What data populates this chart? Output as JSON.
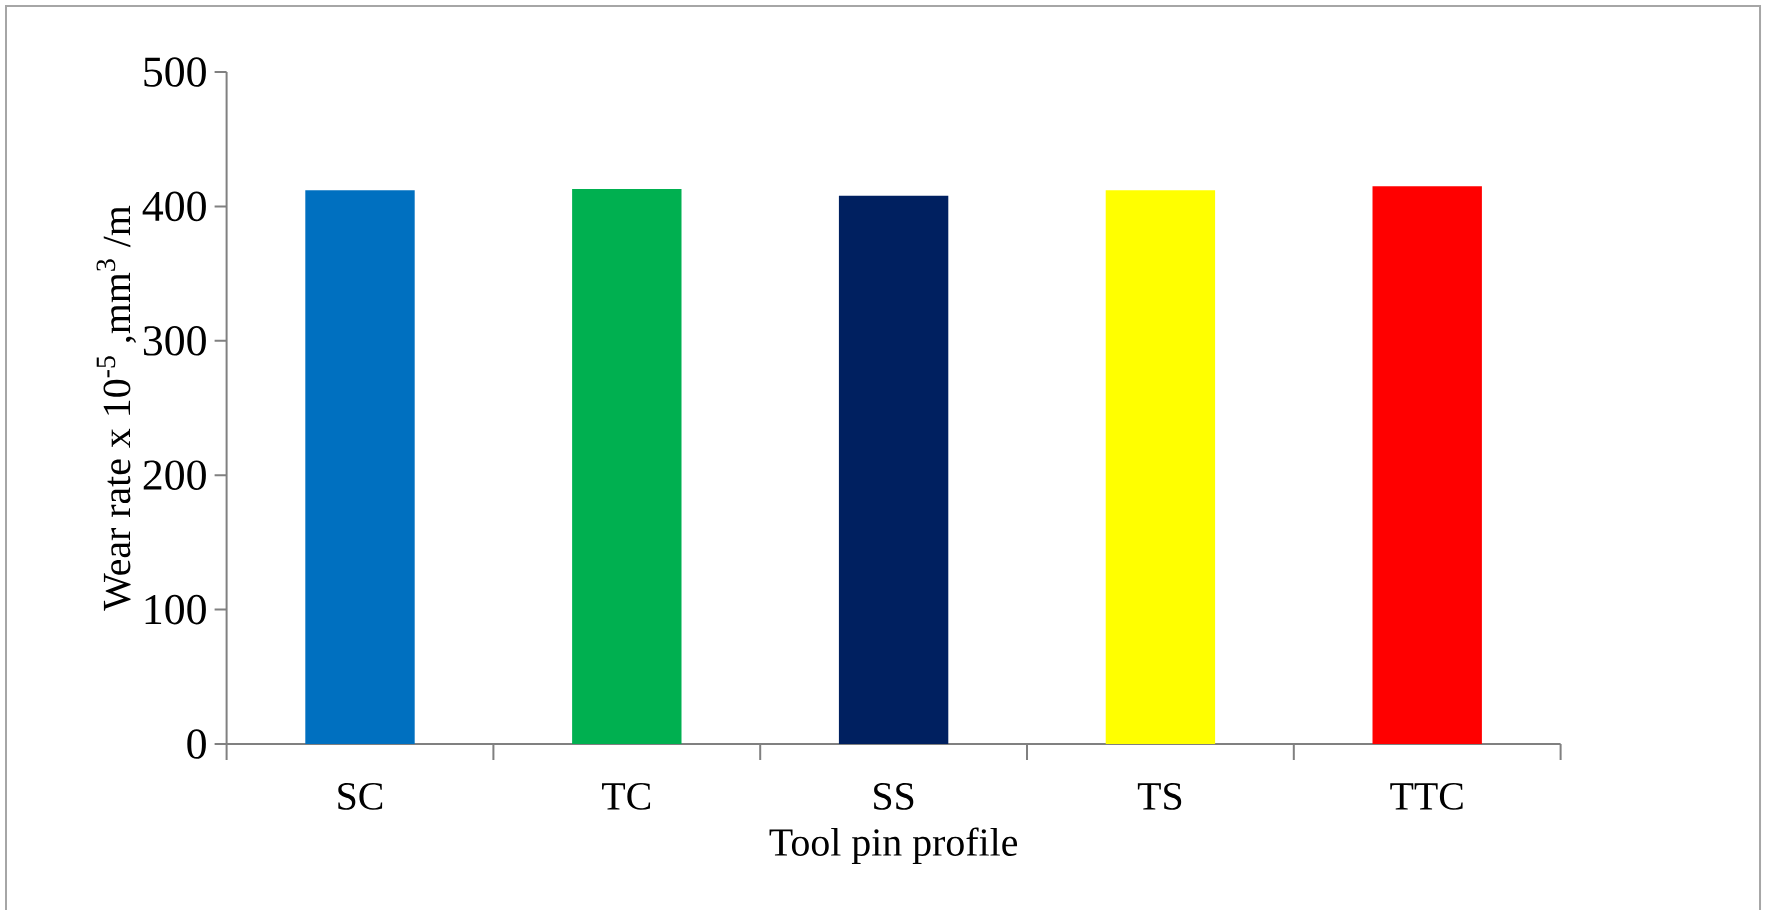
{
  "chart_data": {
    "type": "bar",
    "xlabel": "Tool pin profile",
    "ylabel": "Wear rate x 10$^{-5}$ ,mm$^{3}$ /m",
    "categories": [
      "SC",
      "TC",
      "SS",
      "TS",
      "TTC"
    ],
    "values": [
      412,
      413,
      408,
      412,
      415
    ],
    "colors": [
      "#0070c0",
      "#00b050",
      "#002060",
      "#ffff00",
      "#ff0000"
    ],
    "ylim": [
      0,
      500
    ],
    "yticks": [
      0,
      100,
      200,
      300,
      400,
      500
    ]
  }
}
